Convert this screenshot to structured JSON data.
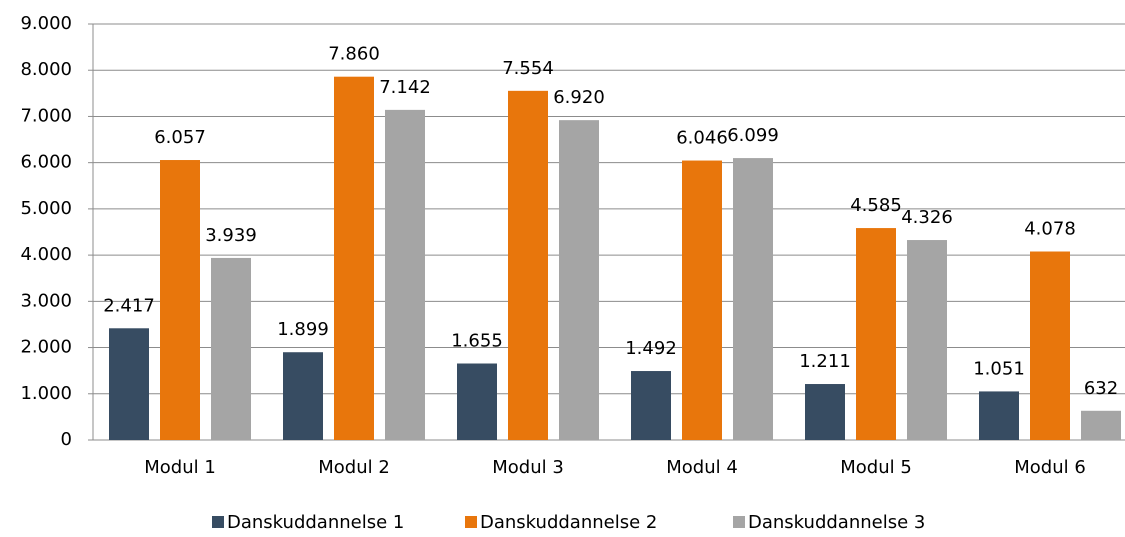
{
  "chart_data": {
    "type": "bar",
    "categories": [
      "Modul 1",
      "Modul 2",
      "Modul 3",
      "Modul 4",
      "Modul 5",
      "Modul 6"
    ],
    "series": [
      {
        "name": "Danskuddannelse 1",
        "color": "#374c62",
        "values": [
          2417,
          1899,
          1655,
          1492,
          1211,
          1051
        ],
        "value_labels": [
          "2.417",
          "1.899",
          "1.655",
          "1.492",
          "1.211",
          "1.051"
        ]
      },
      {
        "name": "Danskuddannelse 2",
        "color": "#e8760c",
        "values": [
          6057,
          7860,
          7554,
          6046,
          4585,
          4078
        ],
        "value_labels": [
          "6.057",
          "7.860",
          "7.554",
          "6.046",
          "4.585",
          "4.078"
        ]
      },
      {
        "name": "Danskuddannelse 3",
        "color": "#a5a5a5",
        "values": [
          3939,
          7142,
          6920,
          6099,
          4326,
          632
        ],
        "value_labels": [
          "3.939",
          "7.142",
          "6.920",
          "6.099",
          "4.326",
          "632"
        ]
      }
    ],
    "ylim": [
      0,
      9000
    ],
    "yticks": [
      0,
      {
        "value": 1000,
        "label": "1.000"
      },
      {
        "value": 2000,
        "label": "2.000"
      },
      {
        "value": 3000,
        "label": "3.000"
      },
      {
        "value": 4000,
        "label": "4.000"
      },
      {
        "value": 5000,
        "label": "5.000"
      },
      {
        "value": 6000,
        "label": "6.000"
      },
      {
        "value": 7000,
        "label": "7.000"
      },
      {
        "value": 8000,
        "label": "8.000"
      },
      {
        "value": 9000,
        "label": "9.000"
      }
    ],
    "grid": true,
    "legend": "bottom"
  }
}
